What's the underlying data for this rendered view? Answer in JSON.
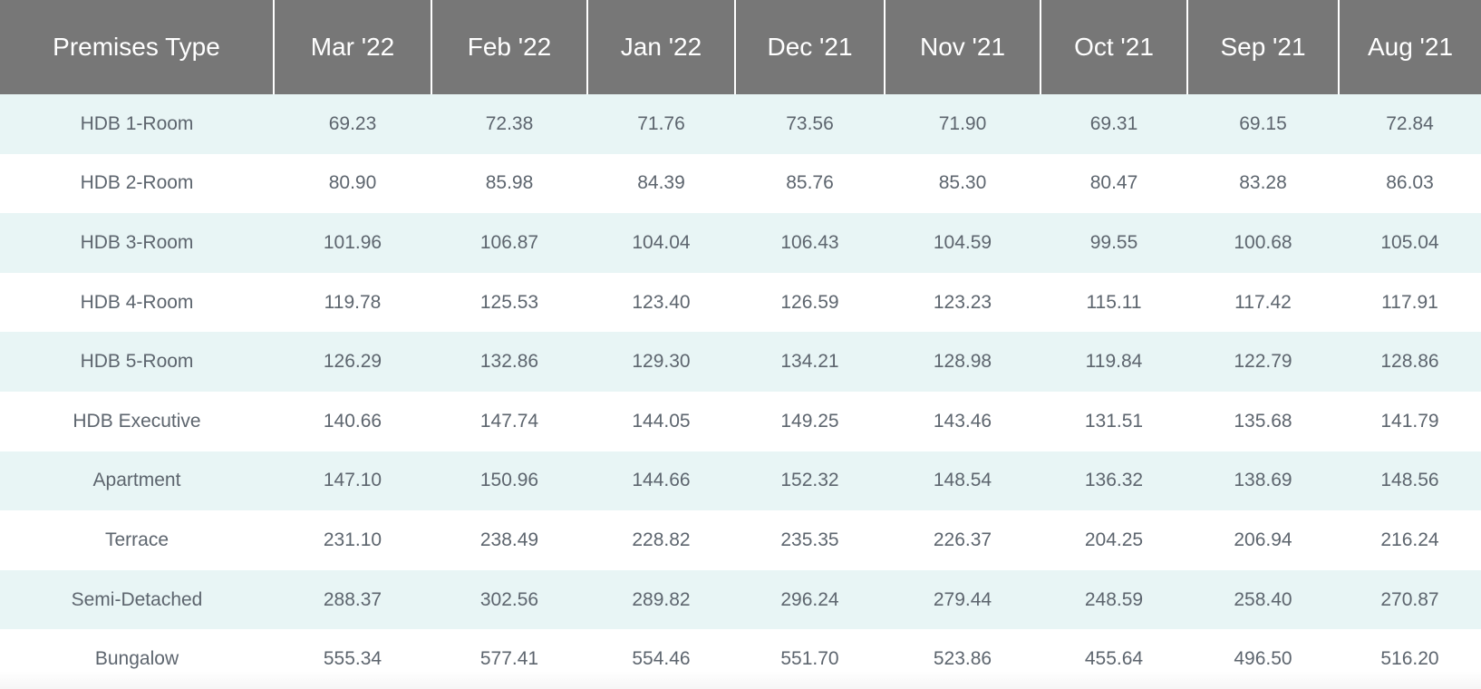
{
  "table": {
    "columns": [
      "Premises Type",
      "Mar '22",
      "Feb '22",
      "Jan '22",
      "Dec '21",
      "Nov '21",
      "Oct '21",
      "Sep '21",
      "Aug '21"
    ],
    "rows": [
      [
        "HDB 1-Room",
        "69.23",
        "72.38",
        "71.76",
        "73.56",
        "71.90",
        "69.31",
        "69.15",
        "72.84"
      ],
      [
        "HDB 2-Room",
        "80.90",
        "85.98",
        "84.39",
        "85.76",
        "85.30",
        "80.47",
        "83.28",
        "86.03"
      ],
      [
        "HDB 3-Room",
        "101.96",
        "106.87",
        "104.04",
        "106.43",
        "104.59",
        "99.55",
        "100.68",
        "105.04"
      ],
      [
        "HDB 4-Room",
        "119.78",
        "125.53",
        "123.40",
        "126.59",
        "123.23",
        "115.11",
        "117.42",
        "117.91"
      ],
      [
        "HDB 5-Room",
        "126.29",
        "132.86",
        "129.30",
        "134.21",
        "128.98",
        "119.84",
        "122.79",
        "128.86"
      ],
      [
        "HDB Executive",
        "140.66",
        "147.74",
        "144.05",
        "149.25",
        "143.46",
        "131.51",
        "135.68",
        "141.79"
      ],
      [
        "Apartment",
        "147.10",
        "150.96",
        "144.66",
        "152.32",
        "148.54",
        "136.32",
        "138.69",
        "148.56"
      ],
      [
        "Terrace",
        "231.10",
        "238.49",
        "228.82",
        "235.35",
        "226.37",
        "204.25",
        "206.94",
        "216.24"
      ],
      [
        "Semi-Detached",
        "288.37",
        "302.56",
        "289.82",
        "296.24",
        "279.44",
        "248.59",
        "258.40",
        "270.87"
      ],
      [
        "Bungalow",
        "555.34",
        "577.41",
        "554.46",
        "551.70",
        "523.86",
        "455.64",
        "496.50",
        "516.20"
      ]
    ]
  },
  "colors": {
    "header_bg": "#777777",
    "stripe": "#e8f5f5",
    "text": "#5d656e"
  }
}
